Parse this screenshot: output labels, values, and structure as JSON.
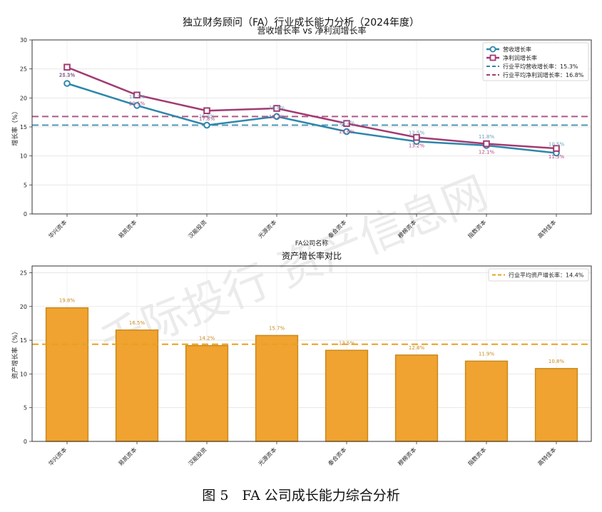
{
  "suptitle": "独立财务顾问（FA）行业成长能力分析（2024年度）",
  "caption": "图 5　FA 公司成长能力综合分析",
  "watermark": "千际投行  资产信息网",
  "colors": {
    "revenue": "#2e86ab",
    "profit": "#a23b72",
    "asset_bar": "#f0a330",
    "asset_bar_edge": "#c98a1e",
    "asset_avg": "#e8a020",
    "revenue_label": "#6a9fb8",
    "profit_label": "#b04a82",
    "bar_label": "#c98a1e"
  },
  "chart_data": [
    {
      "type": "line",
      "title": "营收增长率 vs 净利润增长率",
      "xlabel": "FA公司名称",
      "ylabel": "增长率（%）",
      "ylim": [
        0,
        30
      ],
      "yticks": [
        0,
        5,
        10,
        15,
        20,
        25,
        30
      ],
      "grid": true,
      "legend": "top-right",
      "categories": [
        "华兴资本",
        "易凯资本",
        "汉能投资",
        "光源资本",
        "泰合资本",
        "穆棉资本",
        "指数资本",
        "高特佳本"
      ],
      "series": [
        {
          "name": "营收增长率",
          "marker": "circle",
          "values": [
            22.5,
            18.7,
            15.3,
            16.8,
            14.2,
            12.5,
            11.8,
            10.5
          ],
          "labels": [
            "22.5%",
            "18.7%",
            "15.3%",
            "16.8%",
            "14.2%",
            "12.5%",
            "11.8%",
            "10.5%"
          ]
        },
        {
          "name": "净利润增长率",
          "marker": "square",
          "values": [
            25.3,
            20.5,
            17.8,
            18.2,
            15.6,
            13.2,
            12.1,
            11.3
          ],
          "labels": [
            "25.3%",
            "20.5%",
            "17.8%",
            "18.2%",
            "15.6%",
            "13.2%",
            "12.1%",
            "11.3%"
          ]
        }
      ],
      "reference_lines": [
        {
          "name": "行业平均营收增长率：15.3%",
          "value": 15.3,
          "style": "dashed"
        },
        {
          "name": "行业平均净利润增长率：16.8%",
          "value": 16.8,
          "style": "dashed"
        }
      ]
    },
    {
      "type": "bar",
      "title": "资产增长率对比",
      "xlabel": "",
      "ylabel": "资产增长率（%）",
      "ylim": [
        0,
        26
      ],
      "yticks": [
        0,
        5,
        10,
        15,
        20,
        25
      ],
      "grid": true,
      "legend": "top-right",
      "categories": [
        "华兴资本",
        "易凯资本",
        "汉能投资",
        "光源资本",
        "泰合资本",
        "穆棉资本",
        "指数资本",
        "高特佳本"
      ],
      "values": [
        19.8,
        16.5,
        14.2,
        15.7,
        13.5,
        12.8,
        11.9,
        10.8
      ],
      "labels": [
        "19.8%",
        "16.5%",
        "14.2%",
        "15.7%",
        "13.5%",
        "12.8%",
        "11.9%",
        "10.8%"
      ],
      "reference_lines": [
        {
          "name": "行业平均资产增长率：14.4%",
          "value": 14.4,
          "style": "dashed"
        }
      ]
    }
  ]
}
